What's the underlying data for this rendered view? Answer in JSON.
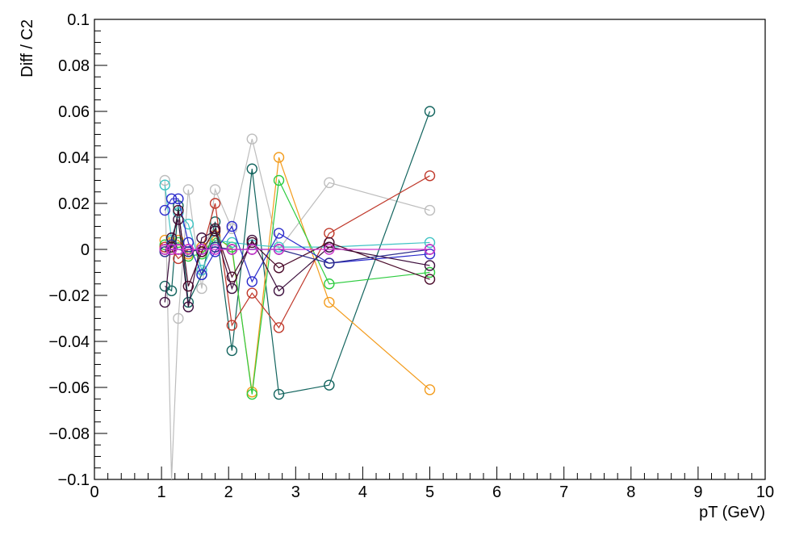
{
  "chart_data": {
    "type": "line",
    "title": "",
    "xlabel": "pT (GeV)",
    "ylabel": "Diff  /  C2",
    "xlim": [
      0,
      10
    ],
    "ylim": [
      -0.1,
      0.1
    ],
    "xticks": [
      "0",
      "1",
      "2",
      "3",
      "4",
      "5",
      "6",
      "7",
      "8",
      "9",
      "10"
    ],
    "yticks": [
      "0.1",
      "0.08",
      "0.06",
      "0.04",
      "0.02",
      "0",
      "−0.02",
      "−0.04",
      "−0.06",
      "−0.08",
      "−0.1"
    ],
    "grid": false,
    "legend": "none",
    "x": [
      1.05,
      1.15,
      1.25,
      1.4,
      1.6,
      1.8,
      2.05,
      2.35,
      2.75,
      3.5,
      5.0
    ],
    "series": [
      {
        "color": "#bdbdbd",
        "values": [
          0.03,
          -0.105,
          -0.03,
          0.026,
          -0.017,
          0.026,
          0.009,
          0.048,
          0.0,
          0.029,
          0.017
        ]
      },
      {
        "color": "#12645e",
        "values": [
          -0.016,
          -0.018,
          0.019,
          -0.023,
          -0.011,
          0.012,
          -0.044,
          0.035,
          -0.063,
          -0.059,
          0.06
        ]
      },
      {
        "color": "#f39c1d",
        "values": [
          0.004,
          0.003,
          0.004,
          -0.002,
          0.001,
          0.006,
          0.0,
          -0.062,
          0.04,
          -0.023,
          -0.061
        ]
      },
      {
        "color": "#2ecc40",
        "values": [
          0.002,
          0.001,
          0.003,
          -0.003,
          -0.002,
          0.005,
          0.001,
          -0.063,
          0.03,
          -0.015,
          -0.01
        ]
      },
      {
        "color": "#c0392b",
        "values": [
          0.001,
          0.0,
          -0.004,
          0.0,
          -0.001,
          0.02,
          -0.033,
          -0.019,
          -0.034,
          0.007,
          0.032
        ]
      },
      {
        "color": "#40c4c4",
        "values": [
          0.028,
          0.004,
          0.016,
          0.011,
          -0.009,
          0.004,
          0.003,
          0.002,
          0.001,
          0.001,
          0.003
        ]
      },
      {
        "color": "#2b2bcc",
        "values": [
          0.017,
          0.022,
          0.022,
          0.003,
          -0.011,
          -0.001,
          0.01,
          -0.014,
          0.007,
          -0.006,
          -0.002
        ]
      },
      {
        "color": "#3d0f3d",
        "values": [
          -0.023,
          0.005,
          0.013,
          -0.025,
          0.005,
          0.008,
          -0.017,
          0.004,
          -0.018,
          0.001,
          -0.007
        ]
      },
      {
        "color": "#4a0a2a",
        "values": [
          0.0,
          0.001,
          0.017,
          -0.016,
          -0.001,
          0.009,
          -0.012,
          0.003,
          -0.008,
          0.003,
          -0.013
        ]
      },
      {
        "color": "#2b2b8c",
        "values": [
          -0.001,
          0.002,
          0.0,
          -0.001,
          0.0,
          0.001,
          0.0,
          0.0,
          0.0,
          -0.006,
          0.0
        ]
      },
      {
        "color": "#cc33cc",
        "values": [
          0.0,
          0.0,
          0.0,
          0.0,
          0.0,
          0.0,
          0.0,
          0.0,
          0.0,
          0.0,
          0.0
        ]
      }
    ]
  }
}
